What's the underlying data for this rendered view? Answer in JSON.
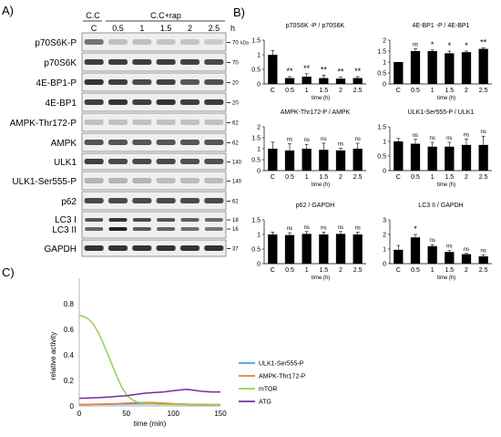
{
  "panels": {
    "A": "A)",
    "B": "B)",
    "C": "C)"
  },
  "blot": {
    "group_cc": "C.C",
    "group_ccrap": "C.C+rap",
    "hour_unit": "h",
    "lanes": [
      "C",
      "0.5",
      "1",
      "1.5",
      "2",
      "2.5"
    ],
    "kda_label": "kDa",
    "rows": [
      {
        "label": "p70S6K-P",
        "mw": "70",
        "lane_intensity": [
          0.55,
          0.2,
          0.2,
          0.18,
          0.18,
          0.15
        ]
      },
      {
        "label": "p70S6K",
        "mw": "70",
        "lane_intensity": [
          0.8,
          0.8,
          0.8,
          0.8,
          0.78,
          0.75
        ]
      },
      {
        "label": "4E-BP1-P",
        "mw": "20",
        "lane_intensity": [
          0.85,
          0.8,
          0.75,
          0.78,
          0.7,
          0.72
        ]
      },
      {
        "label": "4E-BP1",
        "mw": "20",
        "lane_intensity": [
          0.8,
          0.85,
          0.8,
          0.85,
          0.8,
          0.82
        ]
      },
      {
        "label": "AMPK-Thr172-P",
        "mw": "62",
        "lane_intensity": [
          0.2,
          0.2,
          0.2,
          0.2,
          0.2,
          0.2
        ]
      },
      {
        "label": "AMPK",
        "mw": "62",
        "lane_intensity": [
          0.7,
          0.7,
          0.7,
          0.7,
          0.7,
          0.7
        ]
      },
      {
        "label": "ULK1",
        "mw": "140",
        "lane_intensity": [
          0.8,
          0.75,
          0.75,
          0.75,
          0.72,
          0.72
        ]
      },
      {
        "label": "ULK1-Ser555-P",
        "mw": "140",
        "lane_intensity": [
          0.25,
          0.25,
          0.25,
          0.22,
          0.22,
          0.22
        ]
      },
      {
        "label": "p62",
        "mw": "62",
        "lane_intensity": [
          0.75,
          0.75,
          0.75,
          0.75,
          0.75,
          0.75
        ]
      },
      {
        "label": "LC3 I",
        "label2": "LC3 II",
        "mw": "18",
        "mw2": "16",
        "lane_intensity": [
          0.7,
          0.85,
          0.75,
          0.7,
          0.65,
          0.6
        ]
      },
      {
        "label": "GAPDH",
        "mw": "37",
        "lane_intensity": [
          0.85,
          0.85,
          0.85,
          0.85,
          0.85,
          0.85
        ]
      }
    ]
  },
  "chart_data": [
    {
      "type": "bar",
      "title": "p70S6K -P / p70S6K",
      "categories": [
        "C",
        "0.5",
        "1",
        "1.5",
        "2",
        "2.5"
      ],
      "values": [
        1.0,
        0.2,
        0.25,
        0.2,
        0.18,
        0.2
      ],
      "errors": [
        0.15,
        0.05,
        0.1,
        0.1,
        0.05,
        0.05
      ],
      "annotations": [
        "",
        "**",
        "**",
        "**",
        "**",
        "**"
      ],
      "xlabel": "time (h)",
      "ylim": [
        0,
        1.5
      ],
      "yticks": [
        "0",
        "0.5",
        "1",
        "1.5"
      ]
    },
    {
      "type": "bar",
      "title": "4E-BP1 -P / 4E-BP1",
      "categories": [
        "C",
        "0.5",
        "1",
        "1.5",
        "2",
        "2.5"
      ],
      "values": [
        1.0,
        1.5,
        1.5,
        1.4,
        1.45,
        1.6
      ],
      "errors": [
        0.0,
        0.1,
        0.05,
        0.1,
        0.05,
        0.05
      ],
      "annotations": [
        "",
        "ns",
        "*",
        "*",
        "*",
        "**"
      ],
      "xlabel": "time (h)",
      "ylim": [
        0,
        2
      ],
      "yticks": [
        "0",
        "0.5",
        "1",
        "1.5",
        "2"
      ]
    },
    {
      "type": "bar",
      "title": "AMPK-Thr172-P / AMPK",
      "categories": [
        "C",
        "0.5",
        "1",
        "1.5",
        "2",
        "2.5"
      ],
      "values": [
        1.0,
        0.92,
        1.0,
        0.95,
        0.92,
        1.0
      ],
      "errors": [
        0.3,
        0.3,
        0.2,
        0.3,
        0.1,
        0.25
      ],
      "annotations": [
        "",
        "ns",
        "ns",
        "ns",
        "ns",
        "ns"
      ],
      "xlabel": "time (h)",
      "ylim": [
        0,
        2
      ],
      "yticks": [
        "0",
        "0.5",
        "1",
        "1.5",
        "2"
      ]
    },
    {
      "type": "bar",
      "title": "ULK1-Ser555-P / ULK1",
      "categories": [
        "C",
        "0.5",
        "1",
        "1.5",
        "2",
        "2.5"
      ],
      "values": [
        1.0,
        0.92,
        0.82,
        0.82,
        0.88,
        0.88
      ],
      "errors": [
        0.1,
        0.15,
        0.15,
        0.15,
        0.2,
        0.3
      ],
      "annotations": [
        "",
        "ns",
        "ns",
        "ns",
        "ns",
        "ns"
      ],
      "xlabel": "time (h)",
      "ylim": [
        0,
        1.5
      ],
      "yticks": [
        "0",
        "0.5",
        "1",
        "1.5"
      ]
    },
    {
      "type": "bar",
      "title": "p62 / GAPDH",
      "categories": [
        "C",
        "0.5",
        "1",
        "1.5",
        "2",
        "2.5"
      ],
      "values": [
        1.0,
        0.98,
        1.02,
        1.0,
        1.02,
        1.0
      ],
      "errors": [
        0.08,
        0.08,
        0.08,
        0.08,
        0.08,
        0.08
      ],
      "annotations": [
        "",
        "ns",
        "ns",
        "ns",
        "ns",
        "ns"
      ],
      "xlabel": "time (h)",
      "ylim": [
        0,
        1.5
      ],
      "yticks": [
        "0",
        "0.5",
        "1",
        "1.5"
      ]
    },
    {
      "type": "bar",
      "title": "LC3 II / GAPDH",
      "categories": [
        "C",
        "0.5",
        "1",
        "1.5",
        "2",
        "2.5"
      ],
      "values": [
        0.95,
        1.8,
        1.2,
        0.8,
        0.65,
        0.5
      ],
      "errors": [
        0.3,
        0.2,
        0.1,
        0.1,
        0.05,
        0.1
      ],
      "annotations": [
        "",
        "*",
        "ns",
        "ns",
        "ns",
        "ns"
      ],
      "xlabel": "time (h)",
      "ylim": [
        0,
        3
      ],
      "yticks": [
        "0",
        "1",
        "2",
        "3"
      ]
    },
    {
      "type": "line",
      "xlabel": "time (min)",
      "ylabel": "relative activity",
      "xlim": [
        0,
        150
      ],
      "ylim": [
        0,
        1
      ],
      "xticks": [
        "0",
        "50",
        "100",
        "150"
      ],
      "yticks": [
        "0",
        "0.2",
        "0.4",
        "0.6",
        "0.8"
      ],
      "legend_position": "right",
      "series": [
        {
          "name": "ULK1-Ser555-P",
          "color": "#4ba3d8",
          "x": [
            0,
            10,
            20,
            30,
            40,
            50,
            60,
            70,
            80,
            90,
            100,
            110,
            120,
            130,
            140,
            150
          ],
          "y": [
            0.01,
            0.011,
            0.012,
            0.013,
            0.014,
            0.015,
            0.016,
            0.016,
            0.015,
            0.014,
            0.013,
            0.012,
            0.011,
            0.01,
            0.01,
            0.01
          ]
        },
        {
          "name": "AMPK-Thr172-P",
          "color": "#ed7d31",
          "x": [
            0,
            10,
            20,
            30,
            40,
            50,
            60,
            70,
            80,
            90,
            100,
            110,
            120,
            130,
            140,
            150
          ],
          "y": [
            0.012,
            0.013,
            0.014,
            0.016,
            0.018,
            0.022,
            0.026,
            0.028,
            0.026,
            0.022,
            0.018,
            0.015,
            0.013,
            0.012,
            0.011,
            0.011
          ]
        },
        {
          "name": "mTOR",
          "color": "#92d050",
          "x": [
            0,
            5,
            10,
            15,
            20,
            25,
            30,
            35,
            40,
            45,
            50,
            55,
            60,
            65,
            70,
            80,
            100,
            120,
            150
          ],
          "y": [
            0.71,
            0.7,
            0.68,
            0.64,
            0.58,
            0.5,
            0.41,
            0.32,
            0.23,
            0.15,
            0.09,
            0.055,
            0.035,
            0.025,
            0.02,
            0.015,
            0.012,
            0.01,
            0.01
          ]
        },
        {
          "name": "ATG",
          "color": "#7b2c9e",
          "x": [
            0,
            10,
            20,
            30,
            40,
            50,
            60,
            70,
            80,
            90,
            100,
            110,
            115,
            120,
            130,
            140,
            150
          ],
          "y": [
            0.06,
            0.062,
            0.065,
            0.07,
            0.075,
            0.08,
            0.09,
            0.1,
            0.105,
            0.11,
            0.12,
            0.128,
            0.13,
            0.125,
            0.115,
            0.11,
            0.11
          ]
        }
      ]
    }
  ]
}
